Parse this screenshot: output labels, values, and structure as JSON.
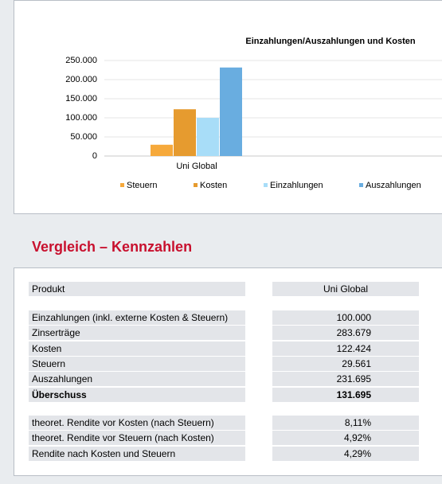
{
  "chart_data": {
    "type": "bar",
    "title": "Einzahlungen/Auszahlungen und Kosten",
    "categories": [
      "Uni Global"
    ],
    "series": [
      {
        "name": "Steuern",
        "color": "#f6a93b",
        "values": [
          29561
        ]
      },
      {
        "name": "Kosten",
        "color": "#e69b2f",
        "values": [
          122424
        ]
      },
      {
        "name": "Einzahlungen",
        "color": "#a8ddf8",
        "values": [
          100000
        ]
      },
      {
        "name": "Auszahlungen",
        "color": "#69ade0",
        "values": [
          231695
        ]
      }
    ],
    "ylim": [
      0,
      250000
    ],
    "yticks": [
      {
        "value": 0,
        "label": "0"
      },
      {
        "value": 50000,
        "label": "50.000"
      },
      {
        "value": 100000,
        "label": "100.000"
      },
      {
        "value": 150000,
        "label": "150.000"
      },
      {
        "value": 200000,
        "label": "200.000"
      },
      {
        "value": 250000,
        "label": "250.000"
      }
    ],
    "grid": true
  },
  "section_title": "Vergleich – Kennzahlen",
  "table": {
    "header": [
      "Produkt",
      "Uni Global"
    ],
    "groups": [
      [
        [
          "Einzahlungen (inkl. externe Kosten & Steuern)",
          "100.000"
        ],
        [
          "Zinserträge",
          "283.679"
        ],
        [
          "Kosten",
          "122.424"
        ],
        [
          "Steuern",
          "29.561"
        ],
        [
          "Auszahlungen",
          "231.695"
        ],
        [
          "Überschuss",
          "131.695"
        ]
      ],
      [
        [
          "theoret. Rendite vor Kosten (nach Steuern)",
          "8,11%"
        ],
        [
          "theoret. Rendite vor Steuern (nach Kosten)",
          "4,92%"
        ],
        [
          "Rendite nach Kosten und Steuern",
          "4,29%"
        ]
      ]
    ]
  }
}
